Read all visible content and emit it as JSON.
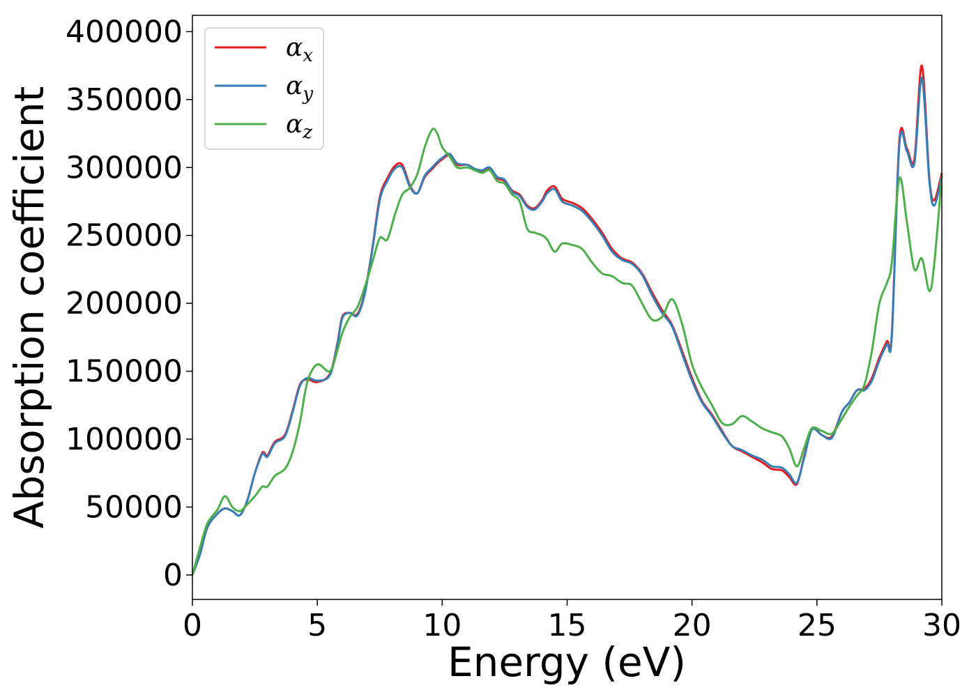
{
  "chart_data": {
    "type": "line",
    "title": "",
    "xlabel": "Energy (eV)",
    "ylabel": "Absorption coefficient",
    "xlim": [
      0,
      30
    ],
    "ylim": [
      -18000,
      412000
    ],
    "xticks": [
      0,
      5,
      10,
      15,
      20,
      25,
      30
    ],
    "xtick_labels": [
      "0",
      "5",
      "10",
      "15",
      "20",
      "25",
      "30"
    ],
    "yticks": [
      0,
      50000,
      100000,
      150000,
      200000,
      250000,
      300000,
      350000,
      400000
    ],
    "ytick_labels": [
      "0",
      "50000",
      "100000",
      "150000",
      "200000",
      "250000",
      "300000",
      "350000",
      "400000"
    ],
    "grid": false,
    "legend_position": "top-left",
    "series": [
      {
        "name": "α",
        "subscript": "x",
        "color": "#e41a1c",
        "x": [
          0,
          0.3,
          0.6,
          1.0,
          1.3,
          1.6,
          1.9,
          2.2,
          2.5,
          2.8,
          3.0,
          3.3,
          3.7,
          4.0,
          4.3,
          4.6,
          5.0,
          5.5,
          5.8,
          6.0,
          6.3,
          6.6,
          6.9,
          7.2,
          7.5,
          7.8,
          8.1,
          8.4,
          8.7,
          9.0,
          9.3,
          9.6,
          9.8,
          10.0,
          10.3,
          10.6,
          11.0,
          11.3,
          11.6,
          11.9,
          12.2,
          12.5,
          12.8,
          13.1,
          13.4,
          13.7,
          14.0,
          14.2,
          14.5,
          14.8,
          15.2,
          15.6,
          16.0,
          16.4,
          16.8,
          17.2,
          17.6,
          18.0,
          18.4,
          18.8,
          19.2,
          19.6,
          20.0,
          20.4,
          20.8,
          21.2,
          21.6,
          22.0,
          22.4,
          22.8,
          23.2,
          23.6,
          23.9,
          24.2,
          24.5,
          24.8,
          25.2,
          25.6,
          26.0,
          26.3,
          26.6,
          26.9,
          27.2,
          27.5,
          27.8,
          28.0,
          28.3,
          28.6,
          28.9,
          29.2,
          29.5,
          29.7,
          30.0
        ],
        "values": [
          0,
          15000,
          35000,
          45000,
          49000,
          47000,
          44000,
          55000,
          75000,
          90000,
          88000,
          98000,
          103000,
          120000,
          140000,
          144000,
          142000,
          148000,
          170000,
          190000,
          193000,
          192000,
          208000,
          240000,
          278000,
          292000,
          301000,
          302000,
          287000,
          281000,
          293000,
          299000,
          303000,
          306000,
          309000,
          302000,
          302000,
          299000,
          297000,
          299000,
          292000,
          290000,
          283000,
          280000,
          272000,
          270000,
          276000,
          283000,
          286000,
          277000,
          274000,
          270000,
          262000,
          252000,
          240000,
          233000,
          230000,
          222000,
          208000,
          195000,
          184000,
          165000,
          145000,
          128000,
          118000,
          106000,
          95000,
          91000,
          87000,
          83000,
          78000,
          77000,
          72000,
          67000,
          88000,
          108000,
          103000,
          102000,
          120000,
          127000,
          136000,
          137000,
          145000,
          160000,
          172000,
          178000,
          320000,
          314000,
          306000,
          375000,
          292000,
          276000,
          296000
        ]
      },
      {
        "name": "α",
        "subscript": "y",
        "color": "#377eb8",
        "x": [
          0,
          0.3,
          0.6,
          1.0,
          1.3,
          1.6,
          1.9,
          2.2,
          2.5,
          2.8,
          3.0,
          3.3,
          3.7,
          4.0,
          4.3,
          4.6,
          5.0,
          5.5,
          5.8,
          6.0,
          6.3,
          6.6,
          6.9,
          7.2,
          7.5,
          7.8,
          8.1,
          8.4,
          8.7,
          9.0,
          9.3,
          9.6,
          9.8,
          10.0,
          10.3,
          10.6,
          11.0,
          11.3,
          11.6,
          11.9,
          12.2,
          12.5,
          12.8,
          13.1,
          13.4,
          13.7,
          14.0,
          14.2,
          14.5,
          14.8,
          15.2,
          15.6,
          16.0,
          16.4,
          16.8,
          17.2,
          17.6,
          18.0,
          18.4,
          18.8,
          19.2,
          19.6,
          20.0,
          20.4,
          20.8,
          21.2,
          21.6,
          22.0,
          22.4,
          22.8,
          23.2,
          23.6,
          23.9,
          24.2,
          24.5,
          24.8,
          25.2,
          25.6,
          26.0,
          26.3,
          26.6,
          26.9,
          27.2,
          27.5,
          27.8,
          28.0,
          28.3,
          28.6,
          28.9,
          29.2,
          29.5,
          29.7,
          30.0
        ],
        "values": [
          0,
          15000,
          35000,
          45000,
          49000,
          47000,
          44000,
          55000,
          75000,
          89000,
          87000,
          97000,
          102000,
          119000,
          139000,
          145000,
          143000,
          147000,
          169000,
          189000,
          193000,
          191000,
          207000,
          239000,
          276000,
          290000,
          299000,
          300000,
          286000,
          281000,
          294000,
          300000,
          304000,
          307000,
          310000,
          303000,
          302000,
          299000,
          298000,
          300000,
          293000,
          291000,
          282000,
          279000,
          271000,
          269000,
          275000,
          281000,
          284000,
          275000,
          272000,
          268000,
          260000,
          250000,
          238000,
          232000,
          229000,
          221000,
          206000,
          193000,
          183000,
          163000,
          143000,
          127000,
          117000,
          105000,
          95000,
          92000,
          88000,
          85000,
          80000,
          79000,
          74000,
          68000,
          87000,
          107000,
          103000,
          101000,
          120000,
          127000,
          136000,
          136000,
          143000,
          158000,
          170000,
          176000,
          317000,
          312000,
          303000,
          366000,
          290000,
          272000,
          294000
        ]
      },
      {
        "name": "α",
        "subscript": "z",
        "color": "#4daf4a",
        "x": [
          0,
          0.3,
          0.6,
          1.0,
          1.3,
          1.6,
          1.9,
          2.2,
          2.5,
          2.8,
          3.0,
          3.3,
          3.7,
          4.0,
          4.3,
          4.6,
          5.0,
          5.5,
          5.8,
          6.0,
          6.3,
          6.6,
          6.9,
          7.2,
          7.5,
          7.8,
          8.1,
          8.4,
          8.7,
          9.0,
          9.3,
          9.6,
          9.8,
          10.0,
          10.3,
          10.6,
          11.0,
          11.3,
          11.6,
          11.9,
          12.2,
          12.5,
          12.8,
          13.1,
          13.4,
          13.7,
          14.0,
          14.2,
          14.5,
          14.8,
          15.2,
          15.6,
          16.0,
          16.4,
          16.8,
          17.2,
          17.6,
          18.0,
          18.4,
          18.8,
          19.2,
          19.6,
          20.0,
          20.4,
          20.8,
          21.2,
          21.6,
          22.0,
          22.4,
          22.8,
          23.2,
          23.6,
          23.9,
          24.2,
          24.5,
          24.8,
          25.2,
          25.6,
          26.0,
          26.3,
          26.6,
          26.9,
          27.2,
          27.5,
          27.8,
          28.0,
          28.3,
          28.6,
          28.9,
          29.2,
          29.5,
          29.7,
          30.0
        ],
        "values": [
          0,
          20000,
          38000,
          48000,
          58000,
          50000,
          47000,
          52000,
          58000,
          65000,
          65000,
          73000,
          78000,
          90000,
          112000,
          142000,
          155000,
          150000,
          165000,
          178000,
          190000,
          197000,
          212000,
          230000,
          248000,
          247000,
          265000,
          280000,
          285000,
          295000,
          315000,
          328000,
          325000,
          315000,
          308000,
          300000,
          300000,
          298000,
          296000,
          298000,
          290000,
          288000,
          280000,
          275000,
          255000,
          252000,
          250000,
          247000,
          238000,
          244000,
          243000,
          240000,
          230000,
          222000,
          220000,
          215000,
          213000,
          200000,
          188000,
          190000,
          203000,
          185000,
          155000,
          138000,
          125000,
          112000,
          111000,
          117000,
          113000,
          108000,
          105000,
          102000,
          93000,
          80000,
          94000,
          108000,
          106000,
          104000,
          115000,
          124000,
          132000,
          140000,
          165000,
          200000,
          215000,
          230000,
          292000,
          260000,
          225000,
          233000,
          209000,
          230000,
          294000
        ]
      }
    ]
  }
}
